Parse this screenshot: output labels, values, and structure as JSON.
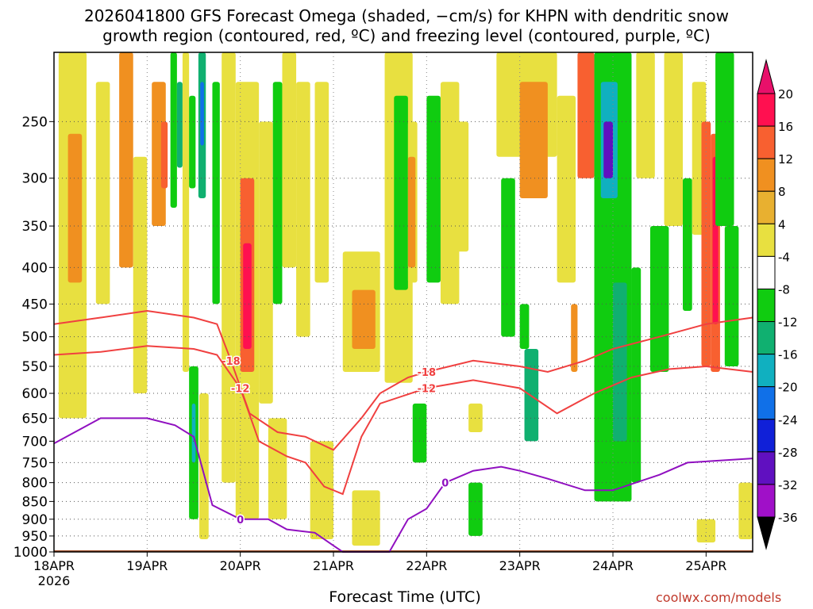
{
  "title_line1": "2026041800 GFS Forecast Omega (shaded, −cm/s) for KHPN with dendritic snow",
  "title_line2": "growth region (contoured, red, ºC) and freezing level (contoured, purple, ºC)",
  "xlabel": "Forecast Time (UTC)",
  "credit": "coolwx.com/models",
  "chart_data": {
    "type": "heatmap",
    "title": "2026041800 GFS Forecast Omega (shaded, −cm/s) for KHPN with dendritic snow growth region (contoured, red, ºC) and freezing level (contoured, purple, ºC)",
    "xlabel": "Forecast Time (UTC)",
    "ylabel": "",
    "x_ticks": [
      "18APR",
      "19APR",
      "20APR",
      "21APR",
      "22APR",
      "23APR",
      "24APR",
      "25APR"
    ],
    "x_tick_values": [
      0,
      1,
      2,
      3,
      4,
      5,
      6,
      7
    ],
    "x_first_sub": "2026",
    "xlim": [
      0,
      7.5
    ],
    "y_ticks": [
      250,
      300,
      350,
      400,
      450,
      500,
      550,
      600,
      650,
      700,
      750,
      800,
      850,
      900,
      950,
      1000
    ],
    "ylim": [
      1000,
      200
    ],
    "colorbar_ticks": [
      20,
      16,
      12,
      8,
      4,
      -4,
      -8,
      -12,
      -16,
      -20,
      -24,
      -28,
      -32,
      -36
    ],
    "colorbar_colors": [
      "#ff1050",
      "#f86030",
      "#f09020",
      "#e8b030",
      "#e8e040",
      "#ffffff",
      "#10cc10",
      "#10b070",
      "#10b0c0",
      "#1070e8",
      "#1020d8",
      "#6010c0",
      "#a010c8",
      "#a8a8a8"
    ],
    "colorbar_top_color": "#e8106a",
    "colorbar_bottom_color": "#000000",
    "contours": [
      {
        "value": -18,
        "label": "-18",
        "color": "#f04040",
        "points": [
          [
            0,
            480
          ],
          [
            0.5,
            470
          ],
          [
            1.0,
            460
          ],
          [
            1.5,
            470
          ],
          [
            1.75,
            480
          ],
          [
            1.9,
            540
          ],
          [
            2.1,
            640
          ],
          [
            2.4,
            680
          ],
          [
            2.7,
            690
          ],
          [
            3.0,
            720
          ],
          [
            3.3,
            650
          ],
          [
            3.5,
            600
          ],
          [
            3.8,
            570
          ],
          [
            4.0,
            560
          ],
          [
            4.5,
            540
          ],
          [
            5.0,
            550
          ],
          [
            5.3,
            560
          ],
          [
            5.7,
            540
          ],
          [
            6.0,
            520
          ],
          [
            6.5,
            500
          ],
          [
            7.0,
            480
          ],
          [
            7.5,
            470
          ]
        ]
      },
      {
        "value": -12,
        "label": "-12",
        "color": "#f04040",
        "points": [
          [
            0,
            530
          ],
          [
            0.5,
            525
          ],
          [
            1.0,
            515
          ],
          [
            1.5,
            520
          ],
          [
            1.75,
            530
          ],
          [
            2.0,
            590
          ],
          [
            2.2,
            700
          ],
          [
            2.5,
            735
          ],
          [
            2.7,
            750
          ],
          [
            2.9,
            810
          ],
          [
            3.1,
            830
          ],
          [
            3.3,
            690
          ],
          [
            3.5,
            620
          ],
          [
            4.0,
            590
          ],
          [
            4.5,
            575
          ],
          [
            5.0,
            590
          ],
          [
            5.4,
            640
          ],
          [
            5.8,
            600
          ],
          [
            6.2,
            570
          ],
          [
            6.6,
            555
          ],
          [
            7.0,
            550
          ],
          [
            7.5,
            560
          ]
        ]
      },
      {
        "value": 0,
        "label": "0",
        "color": "#9010c0",
        "points": [
          [
            0,
            705
          ],
          [
            0.5,
            650
          ],
          [
            1.0,
            650
          ],
          [
            1.3,
            665
          ],
          [
            1.5,
            690
          ],
          [
            1.7,
            860
          ],
          [
            2.0,
            900
          ],
          [
            2.3,
            900
          ],
          [
            2.5,
            930
          ],
          [
            2.8,
            940
          ],
          [
            3.0,
            980
          ],
          [
            3.1,
            1000
          ],
          [
            3.6,
            1000
          ],
          [
            3.8,
            900
          ],
          [
            4.0,
            870
          ],
          [
            4.2,
            800
          ],
          [
            4.5,
            770
          ],
          [
            4.8,
            760
          ],
          [
            5.0,
            770
          ],
          [
            5.3,
            790
          ],
          [
            5.7,
            820
          ],
          [
            6.0,
            820
          ],
          [
            6.5,
            780
          ],
          [
            6.8,
            750
          ],
          [
            7.5,
            740
          ]
        ]
      }
    ],
    "omega_cells": [
      {
        "x0": 0.05,
        "x1": 0.35,
        "p0": 200,
        "p1": 650,
        "v": 6
      },
      {
        "x0": 0.15,
        "x1": 0.3,
        "p0": 260,
        "p1": 420,
        "v": 11
      },
      {
        "x0": 0.45,
        "x1": 0.6,
        "p0": 220,
        "p1": 450,
        "v": 5
      },
      {
        "x0": 0.7,
        "x1": 0.85,
        "p0": 200,
        "p1": 400,
        "v": 8
      },
      {
        "x0": 0.85,
        "x1": 1.0,
        "p0": 280,
        "p1": 600,
        "v": 6
      },
      {
        "x0": 1.05,
        "x1": 1.2,
        "p0": 220,
        "p1": 350,
        "v": 9
      },
      {
        "x0": 1.15,
        "x1": 1.22,
        "p0": 250,
        "p1": 310,
        "v": 14
      },
      {
        "x0": 1.25,
        "x1": 1.32,
        "p0": 200,
        "p1": 330,
        "v": -9
      },
      {
        "x0": 1.32,
        "x1": 1.38,
        "p0": 220,
        "p1": 290,
        "v": -14
      },
      {
        "x0": 1.38,
        "x1": 1.45,
        "p0": 200,
        "p1": 560,
        "v": 6
      },
      {
        "x0": 1.45,
        "x1": 1.52,
        "p0": 230,
        "p1": 310,
        "v": -10
      },
      {
        "x0": 1.55,
        "x1": 1.63,
        "p0": 200,
        "p1": 320,
        "v": -12
      },
      {
        "x0": 1.57,
        "x1": 1.61,
        "p0": 220,
        "p1": 270,
        "v": -22
      },
      {
        "x0": 1.45,
        "x1": 1.55,
        "p0": 550,
        "p1": 900,
        "v": -10
      },
      {
        "x0": 1.48,
        "x1": 1.52,
        "p0": 620,
        "p1": 750,
        "v": -18
      },
      {
        "x0": 1.56,
        "x1": 1.66,
        "p0": 600,
        "p1": 960,
        "v": 5
      },
      {
        "x0": 1.7,
        "x1": 1.78,
        "p0": 220,
        "p1": 450,
        "v": -9
      },
      {
        "x0": 1.8,
        "x1": 1.95,
        "p0": 200,
        "p1": 800,
        "v": 6
      },
      {
        "x0": 1.95,
        "x1": 2.2,
        "p0": 220,
        "p1": 900,
        "v": 7
      },
      {
        "x0": 2.0,
        "x1": 2.15,
        "p0": 300,
        "p1": 560,
        "v": 12
      },
      {
        "x0": 2.03,
        "x1": 2.12,
        "p0": 370,
        "p1": 520,
        "v": 19
      },
      {
        "x0": 2.2,
        "x1": 2.35,
        "p0": 250,
        "p1": 620,
        "v": 6
      },
      {
        "x0": 2.35,
        "x1": 2.45,
        "p0": 220,
        "p1": 450,
        "v": -9
      },
      {
        "x0": 2.45,
        "x1": 2.6,
        "p0": 200,
        "p1": 400,
        "v": 5
      },
      {
        "x0": 2.6,
        "x1": 2.75,
        "p0": 220,
        "p1": 500,
        "v": 5
      },
      {
        "x0": 2.8,
        "x1": 2.95,
        "p0": 220,
        "p1": 420,
        "v": 5
      },
      {
        "x0": 2.3,
        "x1": 2.5,
        "p0": 650,
        "p1": 900,
        "v": 5
      },
      {
        "x0": 2.75,
        "x1": 3.0,
        "p0": 700,
        "p1": 960,
        "v": 5
      },
      {
        "x0": 3.1,
        "x1": 3.5,
        "p0": 380,
        "p1": 560,
        "v": 5
      },
      {
        "x0": 3.2,
        "x1": 3.45,
        "p0": 430,
        "p1": 520,
        "v": 10
      },
      {
        "x0": 3.2,
        "x1": 3.5,
        "p0": 820,
        "p1": 980,
        "v": 5
      },
      {
        "x0": 3.55,
        "x1": 3.85,
        "p0": 200,
        "p1": 580,
        "v": 5
      },
      {
        "x0": 3.65,
        "x1": 3.8,
        "p0": 230,
        "p1": 430,
        "v": -9
      },
      {
        "x0": 3.8,
        "x1": 3.9,
        "p0": 250,
        "p1": 420,
        "v": 5
      },
      {
        "x0": 3.8,
        "x1": 3.88,
        "p0": 280,
        "p1": 400,
        "v": 10
      },
      {
        "x0": 3.85,
        "x1": 4.0,
        "p0": 620,
        "p1": 750,
        "v": -9
      },
      {
        "x0": 4.0,
        "x1": 4.15,
        "p0": 230,
        "p1": 420,
        "v": -9
      },
      {
        "x0": 4.15,
        "x1": 4.35,
        "p0": 220,
        "p1": 450,
        "v": 5
      },
      {
        "x0": 4.25,
        "x1": 4.45,
        "p0": 250,
        "p1": 380,
        "v": 5
      },
      {
        "x0": 4.45,
        "x1": 4.6,
        "p0": 620,
        "p1": 680,
        "v": 6
      },
      {
        "x0": 4.45,
        "x1": 4.6,
        "p0": 800,
        "p1": 950,
        "v": -9
      },
      {
        "x0": 4.8,
        "x1": 4.95,
        "p0": 300,
        "p1": 500,
        "v": -9
      },
      {
        "x0": 4.75,
        "x1": 5.4,
        "p0": 200,
        "p1": 280,
        "v": 7
      },
      {
        "x0": 5.0,
        "x1": 5.3,
        "p0": 220,
        "p1": 320,
        "v": 10
      },
      {
        "x0": 5.0,
        "x1": 5.1,
        "p0": 450,
        "p1": 520,
        "v": -10
      },
      {
        "x0": 5.05,
        "x1": 5.2,
        "p0": 520,
        "p1": 700,
        "v": -12
      },
      {
        "x0": 5.4,
        "x1": 5.6,
        "p0": 230,
        "p1": 420,
        "v": 6
      },
      {
        "x0": 5.55,
        "x1": 5.62,
        "p0": 450,
        "p1": 560,
        "v": 10
      },
      {
        "x0": 5.62,
        "x1": 5.8,
        "p0": 200,
        "p1": 300,
        "v": 12
      },
      {
        "x0": 5.8,
        "x1": 6.2,
        "p0": 200,
        "p1": 850,
        "v": -9
      },
      {
        "x0": 5.87,
        "x1": 6.05,
        "p0": 220,
        "p1": 320,
        "v": -16
      },
      {
        "x0": 5.9,
        "x1": 6.0,
        "p0": 250,
        "p1": 300,
        "v": -28
      },
      {
        "x0": 6.0,
        "x1": 6.15,
        "p0": 420,
        "p1": 700,
        "v": -12
      },
      {
        "x0": 6.2,
        "x1": 6.3,
        "p0": 400,
        "p1": 800,
        "v": -9
      },
      {
        "x0": 6.25,
        "x1": 6.45,
        "p0": 200,
        "p1": 300,
        "v": 6
      },
      {
        "x0": 6.4,
        "x1": 6.6,
        "p0": 350,
        "p1": 560,
        "v": -9
      },
      {
        "x0": 6.55,
        "x1": 6.75,
        "p0": 200,
        "p1": 350,
        "v": 5
      },
      {
        "x0": 6.75,
        "x1": 6.85,
        "p0": 300,
        "p1": 460,
        "v": -9
      },
      {
        "x0": 6.85,
        "x1": 7.0,
        "p0": 220,
        "p1": 360,
        "v": 6
      },
      {
        "x0": 6.95,
        "x1": 7.05,
        "p0": 250,
        "p1": 550,
        "v": 12
      },
      {
        "x0": 7.05,
        "x1": 7.15,
        "p0": 260,
        "p1": 560,
        "v": 14
      },
      {
        "x0": 7.07,
        "x1": 7.13,
        "p0": 280,
        "p1": 480,
        "v": 18
      },
      {
        "x0": 7.1,
        "x1": 7.3,
        "p0": 200,
        "p1": 350,
        "v": -9
      },
      {
        "x0": 7.2,
        "x1": 7.35,
        "p0": 350,
        "p1": 550,
        "v": -9
      },
      {
        "x0": 6.9,
        "x1": 7.1,
        "p0": 900,
        "p1": 970,
        "v": 5
      },
      {
        "x0": 7.35,
        "x1": 7.5,
        "p0": 800,
        "p1": 960,
        "v": 5
      }
    ]
  }
}
